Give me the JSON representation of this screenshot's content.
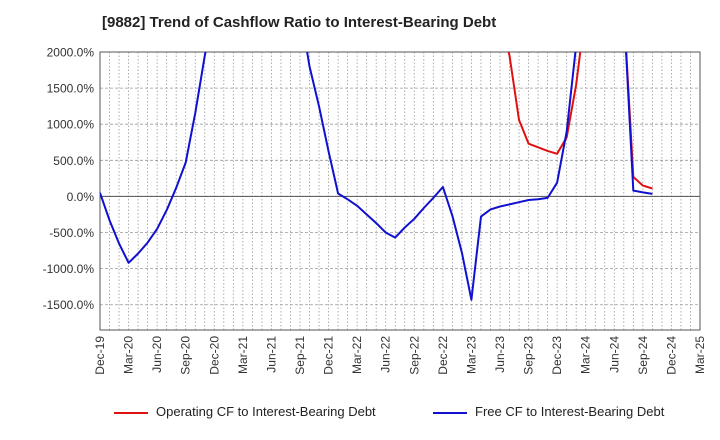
{
  "chart_data": {
    "type": "line",
    "title": "[9882]  Trend of Cashflow Ratio to Interest-Bearing Debt",
    "xlabel": "",
    "ylabel": "",
    "ylim": [
      -1850,
      2000
    ],
    "yticks": [
      2000,
      1500,
      1000,
      500,
      0,
      -500,
      -1000,
      -1500
    ],
    "ytick_labels": [
      "2000.0%",
      "1500.0%",
      "1000.0%",
      "500.0%",
      "0.0%",
      "-500.0%",
      "-1000.0%",
      "-1500.0%"
    ],
    "x_tick_labels": [
      "Dec-19",
      "Mar-20",
      "Jun-20",
      "Sep-20",
      "Dec-20",
      "Mar-21",
      "Jun-21",
      "Sep-21",
      "Dec-21",
      "Mar-22",
      "Jun-22",
      "Sep-22",
      "Dec-22",
      "Mar-23",
      "Jun-23",
      "Sep-23",
      "Dec-23",
      "Mar-24",
      "Jun-24",
      "Sep-24",
      "Dec-24",
      "Mar-25"
    ],
    "grid": true,
    "legend_position": "bottom",
    "series": [
      {
        "name": "Operating CF to Interest-Bearing Debt",
        "color": "#e01010",
        "points": [
          [
            "Jun-23",
            2500
          ],
          [
            "Jul-23",
            1950
          ],
          [
            "Aug-23",
            1060
          ],
          [
            "Sep-23",
            730
          ],
          [
            "Oct-23",
            680
          ],
          [
            "Nov-23",
            630
          ],
          [
            "Dec-23",
            590
          ],
          [
            "Jan-24",
            820
          ],
          [
            "Feb-24",
            1550
          ],
          [
            "Mar-24",
            2600
          ],
          [
            null,
            null
          ],
          [
            "Jul-24",
            2600
          ],
          [
            "Aug-24",
            270
          ],
          [
            "Sep-24",
            150
          ],
          [
            "Oct-24",
            110
          ]
        ]
      },
      {
        "name": "Free CF to Interest-Bearing Debt",
        "color": "#1010d0",
        "points": [
          [
            "Dec-19",
            50
          ],
          [
            "Jan-20",
            -330
          ],
          [
            "Feb-20",
            -650
          ],
          [
            "Mar-20",
            -920
          ],
          [
            "Apr-20",
            -790
          ],
          [
            "May-20",
            -640
          ],
          [
            "Jun-20",
            -450
          ],
          [
            "Jul-20",
            -190
          ],
          [
            "Aug-20",
            120
          ],
          [
            "Sep-20",
            470
          ],
          [
            "Oct-20",
            1150
          ],
          [
            "Nov-20",
            1950
          ],
          [
            "Dec-20",
            2600
          ],
          [
            null,
            null
          ],
          [
            "Sep-21",
            2600
          ],
          [
            "Oct-21",
            1800
          ],
          [
            "Nov-21",
            1250
          ],
          [
            "Dec-21",
            620
          ],
          [
            "Jan-22",
            40
          ],
          [
            "Feb-22",
            -40
          ],
          [
            "Mar-22",
            -130
          ],
          [
            "Apr-22",
            -250
          ],
          [
            "May-22",
            -370
          ],
          [
            "Jun-22",
            -500
          ],
          [
            "Jul-22",
            -570
          ],
          [
            "Aug-22",
            -430
          ],
          [
            "Sep-22",
            -310
          ],
          [
            "Oct-22",
            -160
          ],
          [
            "Nov-22",
            -20
          ],
          [
            "Dec-22",
            130
          ],
          [
            "Jan-23",
            -270
          ],
          [
            "Feb-23",
            -780
          ],
          [
            "Mar-23",
            -1430
          ],
          [
            "Apr-23",
            -280
          ],
          [
            "May-23",
            -180
          ],
          [
            "Jun-23",
            -140
          ],
          [
            "Jul-23",
            -110
          ],
          [
            "Aug-23",
            -80
          ],
          [
            "Sep-23",
            -50
          ],
          [
            "Oct-23",
            -40
          ],
          [
            "Nov-23",
            -20
          ],
          [
            "Dec-23",
            190
          ],
          [
            "Jan-24",
            900
          ],
          [
            "Feb-24",
            2100
          ],
          [
            "Mar-24",
            2600
          ],
          [
            null,
            null
          ],
          [
            "Jul-24",
            2600
          ],
          [
            "Aug-24",
            80
          ],
          [
            "Sep-24",
            55
          ],
          [
            "Oct-24",
            35
          ]
        ]
      }
    ]
  }
}
